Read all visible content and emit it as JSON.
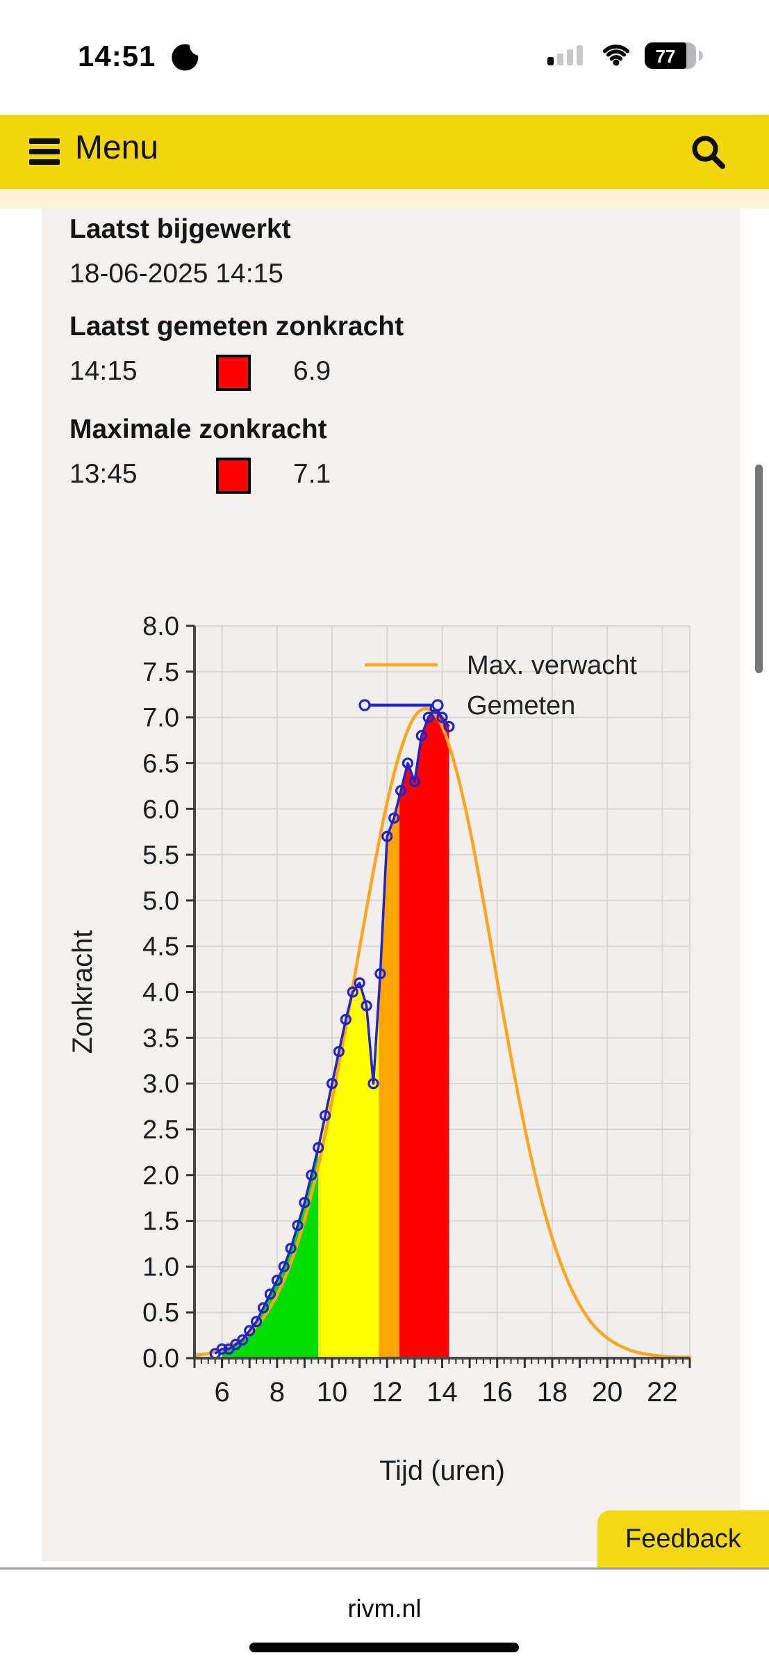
{
  "status_bar": {
    "time": "14:51",
    "battery_percent": "77"
  },
  "menu_bar": {
    "menu_label": "Menu"
  },
  "info": {
    "updated_heading": "Laatst bijgewerkt",
    "updated_value": "18-06-2025 14:15",
    "last_heading": "Laatst gemeten zonkracht",
    "last_time": "14:15",
    "last_value": "6.9",
    "last_indicator_color": "#FF0000",
    "max_heading": "Maximale zonkracht",
    "max_time": "13:45",
    "max_value": "7.1",
    "max_indicator_color": "#FF0000"
  },
  "chart_data": {
    "type": "line",
    "xlabel": "Tijd (uren)",
    "ylabel": "Zonkracht",
    "xlim": [
      5,
      23
    ],
    "ylim": [
      0,
      8
    ],
    "x_ticks": [
      6,
      8,
      10,
      12,
      14,
      16,
      18,
      20,
      22
    ],
    "x_minor_step": 0.25,
    "y_tick_step": 0.5,
    "grid": true,
    "legend_position": "top-center",
    "legend": [
      {
        "label": "Max. verwacht",
        "color": "#FFA51E",
        "style": "line"
      },
      {
        "label": "Gemeten",
        "color": "#2323CD",
        "style": "line-markers"
      }
    ],
    "series": [
      {
        "name": "Max. verwacht",
        "color": "#FFA51E",
        "smooth": true,
        "x": [
          5.0,
          5.5,
          6.0,
          6.5,
          7.0,
          7.5,
          8.0,
          8.5,
          9.0,
          9.5,
          10.0,
          10.5,
          11.0,
          11.5,
          12.0,
          12.5,
          13.0,
          13.5,
          14.0,
          14.5,
          15.0,
          15.5,
          16.0,
          16.5,
          17.0,
          17.5,
          18.0,
          18.5,
          19.0,
          19.5,
          20.0,
          20.5,
          21.0,
          21.5,
          22.0,
          22.5,
          23.0
        ],
        "values": [
          0.03,
          0.05,
          0.09,
          0.16,
          0.27,
          0.44,
          0.69,
          1.04,
          1.51,
          2.1,
          2.82,
          3.62,
          4.48,
          5.32,
          6.07,
          6.65,
          7.01,
          7.09,
          6.9,
          6.44,
          5.79,
          4.99,
          4.13,
          3.29,
          2.52,
          1.85,
          1.31,
          0.89,
          0.58,
          0.36,
          0.22,
          0.13,
          0.07,
          0.04,
          0.02,
          0.01,
          0.01
        ]
      },
      {
        "name": "Gemeten",
        "color": "#2323CD",
        "smooth": false,
        "markers": true,
        "x": [
          5.75,
          6.0,
          6.25,
          6.5,
          6.75,
          7.0,
          7.25,
          7.5,
          7.75,
          8.0,
          8.25,
          8.5,
          8.75,
          9.0,
          9.25,
          9.5,
          9.75,
          10.0,
          10.25,
          10.5,
          10.75,
          11.0,
          11.25,
          11.5,
          11.75,
          12.0,
          12.25,
          12.5,
          12.75,
          13.0,
          13.25,
          13.5,
          13.75,
          14.0,
          14.25
        ],
        "values": [
          0.05,
          0.1,
          0.1,
          0.15,
          0.2,
          0.3,
          0.4,
          0.55,
          0.7,
          0.85,
          1.0,
          1.2,
          1.45,
          1.7,
          2.0,
          2.3,
          2.65,
          3.0,
          3.35,
          3.7,
          4.0,
          4.1,
          3.85,
          3.0,
          4.2,
          5.7,
          5.9,
          6.2,
          6.5,
          6.3,
          6.8,
          7.0,
          7.1,
          7.0,
          6.9
        ]
      }
    ],
    "bands_under_measured": [
      {
        "from": 6.0,
        "to": 9.5,
        "color": "#00DC00"
      },
      {
        "from": 9.5,
        "to": 11.7,
        "color": "#FFFF00"
      },
      {
        "from": 11.7,
        "to": 12.45,
        "color": "#FFA500"
      },
      {
        "from": 12.45,
        "to": 14.25,
        "color": "#FF0000"
      }
    ]
  },
  "footer": {
    "feedback_label": "Feedback",
    "site": "rivm.nl"
  }
}
